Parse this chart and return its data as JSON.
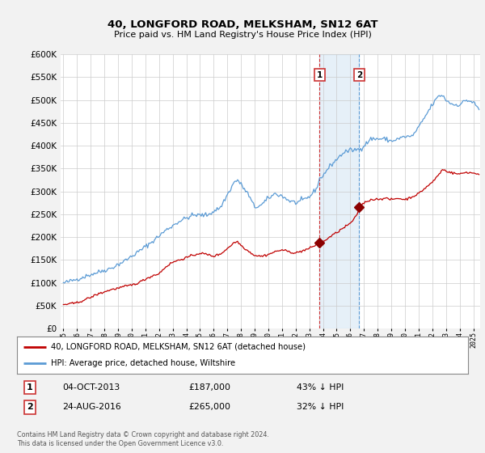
{
  "title1": "40, LONGFORD ROAD, MELKSHAM, SN12 6AT",
  "title2": "Price paid vs. HM Land Registry's House Price Index (HPI)",
  "legend_line1": "40, LONGFORD ROAD, MELKSHAM, SN12 6AT (detached house)",
  "legend_line2": "HPI: Average price, detached house, Wiltshire",
  "annotation1_label": "1",
  "annotation1_date": "04-OCT-2013",
  "annotation1_price": "£187,000",
  "annotation1_hpi": "43% ↓ HPI",
  "annotation2_label": "2",
  "annotation2_date": "24-AUG-2016",
  "annotation2_price": "£265,000",
  "annotation2_hpi": "32% ↓ HPI",
  "footer": "Contains HM Land Registry data © Crown copyright and database right 2024.\nThis data is licensed under the Open Government Licence v3.0.",
  "hpi_color": "#5b9bd5",
  "price_color": "#c00000",
  "marker_color": "#8b0000",
  "background_color": "#f2f2f2",
  "plot_bg": "#ffffff",
  "transaction1_x": 2013.75,
  "transaction1_y": 187000,
  "transaction2_x": 2016.65,
  "transaction2_y": 265000,
  "vline1_x": 2013.75,
  "vline2_x": 2016.65,
  "shade_xmin": 2013.75,
  "shade_xmax": 2016.65,
  "ylim": [
    0,
    600000
  ],
  "xlim": [
    1994.8,
    2025.5
  ]
}
